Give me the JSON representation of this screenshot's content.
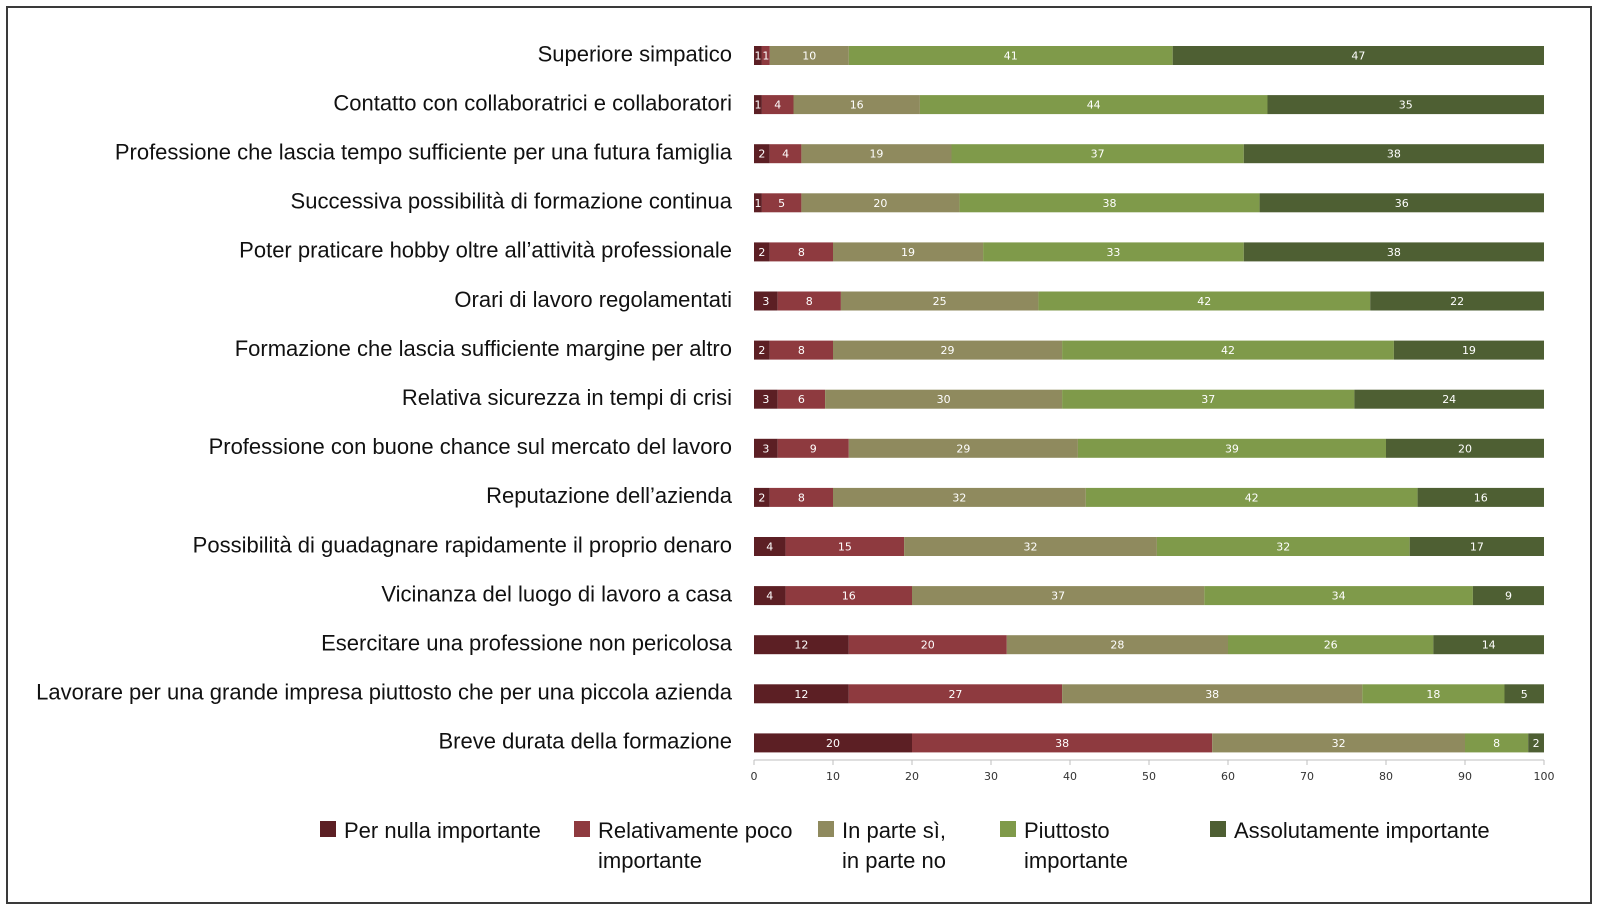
{
  "chart_data": {
    "type": "bar",
    "orientation": "horizontal",
    "stacked": true,
    "xlim": [
      0,
      100
    ],
    "xticks": [
      0,
      10,
      20,
      30,
      40,
      50,
      60,
      70,
      80,
      90,
      100
    ],
    "categories": [
      "Superiore simpatico",
      "Contatto con collaboratrici e collaboratori",
      "Professione che lascia tempo sufficiente per una futura famiglia",
      "Successiva possibilità di formazione continua",
      "Poter praticare hobby oltre all’attività professionale",
      "Orari di lavoro regolamentati",
      "Formazione che lascia sufficiente margine per altro",
      "Relativa sicurezza in tempi di crisi",
      "Professione con buone chance sul mercato del lavoro",
      "Reputazione dell’azienda",
      "Possibilità di guadagnare rapidamente il proprio denaro",
      "Vicinanza del luogo di lavoro a casa",
      "Esercitare una professione non pericolosa",
      "Lavorare per una grande impresa piuttosto che per una piccola azienda",
      "Breve durata della formazione"
    ],
    "series": [
      {
        "name": "Per nulla importante",
        "color": "#5c1f24",
        "label_color": "#ffffff",
        "values": [
          1,
          1,
          2,
          1,
          2,
          3,
          2,
          3,
          3,
          2,
          4,
          4,
          12,
          12,
          20
        ]
      },
      {
        "name": "Relativamente poco importante",
        "color": "#8e3a3f",
        "label_color": "#ffffff",
        "values": [
          1,
          4,
          4,
          5,
          8,
          8,
          8,
          6,
          9,
          8,
          15,
          16,
          20,
          27,
          38
        ]
      },
      {
        "name": "In parte sì, in parte no",
        "color": "#8f8a5e",
        "label_color": "#ffffff",
        "values": [
          10,
          16,
          19,
          20,
          19,
          25,
          29,
          30,
          29,
          32,
          32,
          37,
          28,
          38,
          32
        ]
      },
      {
        "name": "Piuttosto importante",
        "color": "#7f9a4a",
        "label_color": "#ffffff",
        "values": [
          41,
          44,
          37,
          38,
          33,
          42,
          42,
          37,
          39,
          42,
          32,
          34,
          26,
          18,
          8
        ]
      },
      {
        "name": "Assolutamente importante",
        "color": "#4e5f33",
        "label_color": "#ffffff",
        "values": [
          47,
          35,
          38,
          36,
          38,
          22,
          19,
          24,
          20,
          16,
          17,
          9,
          14,
          5,
          2
        ]
      }
    ]
  },
  "legend": [
    {
      "text": "Per nulla importante",
      "color": "#5c1f24"
    },
    {
      "text": "Relativamente poco\nimportante",
      "color": "#8e3a3f"
    },
    {
      "text": "In parte sì,\nin parte no",
      "color": "#8f8a5e"
    },
    {
      "text": "Piuttosto\nimportante",
      "color": "#7f9a4a"
    },
    {
      "text": "Assolutamente importante",
      "color": "#4e5f33"
    }
  ]
}
